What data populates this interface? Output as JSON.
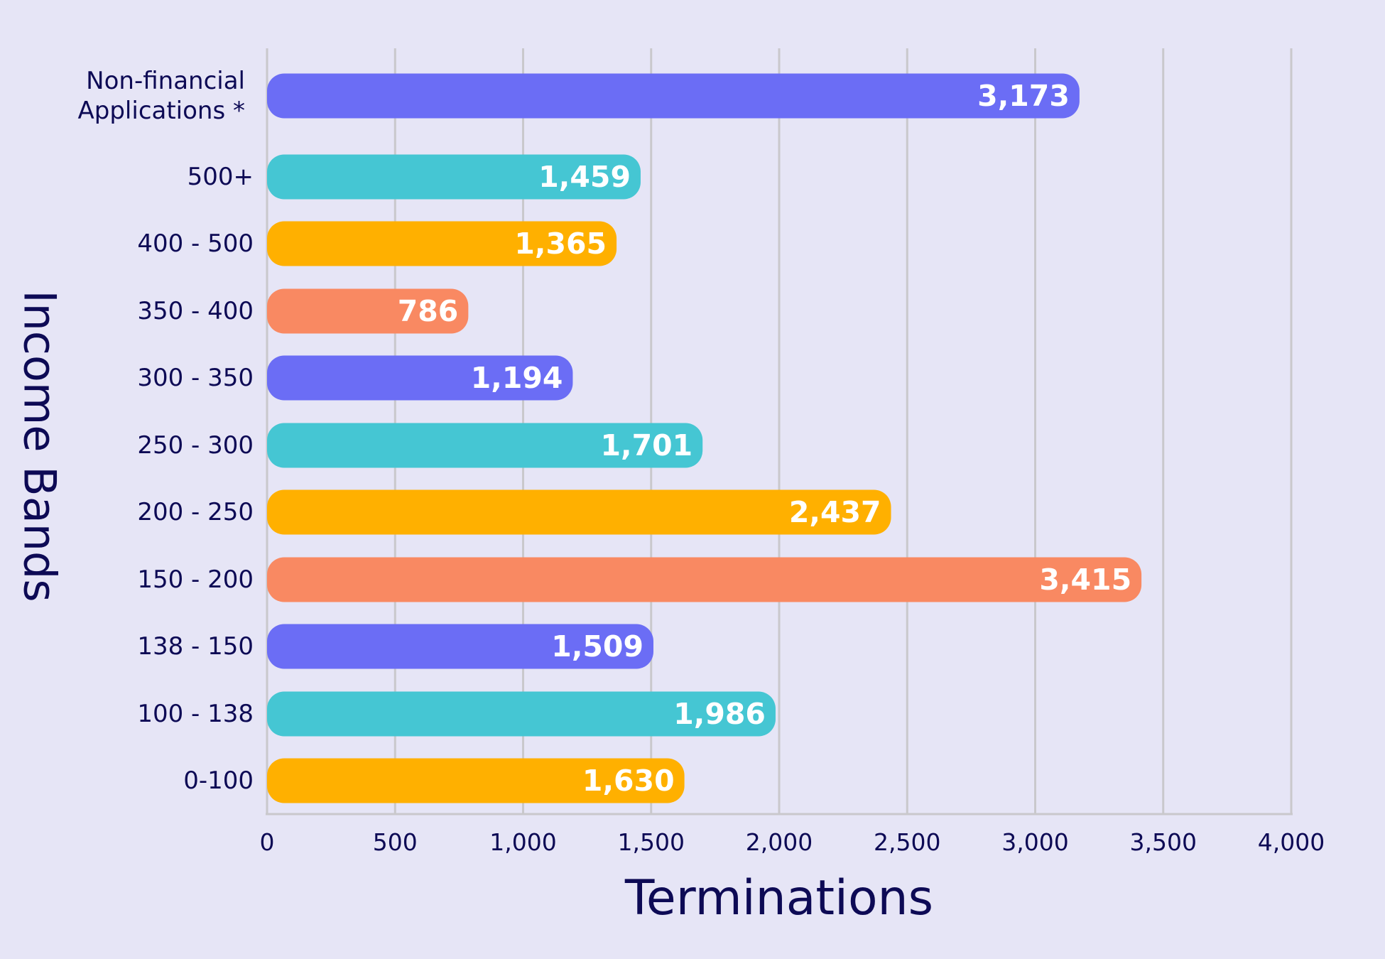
{
  "chart_data": {
    "type": "bar",
    "orientation": "horizontal",
    "categories": [
      "Non-financial\nApplications *",
      "500+",
      "400 - 500",
      "350 - 400",
      "300 - 350",
      "250 - 300",
      "200 - 250",
      "150 - 200",
      "138 - 150",
      "100 - 138",
      "0-100"
    ],
    "values": [
      3173,
      1459,
      1365,
      786,
      1194,
      1701,
      2437,
      3415,
      1509,
      1986,
      1630
    ],
    "value_labels": [
      "3,173",
      "1,459",
      "1,365",
      "786",
      "1,194",
      "1,701",
      "2,437",
      "3,415",
      "1,509",
      "1,986",
      "1,630"
    ],
    "colors": [
      "#6B6DF5",
      "#45C6D3",
      "#FFB000",
      "#F98962",
      "#6B6DF5",
      "#45C6D3",
      "#FFB000",
      "#F98962",
      "#6B6DF5",
      "#45C6D3",
      "#FFB000"
    ],
    "xlabel": "Terminations",
    "ylabel": "Income Bands",
    "xlim": [
      0,
      4000
    ],
    "xticks": [
      0,
      500,
      1000,
      1500,
      2000,
      2500,
      3000,
      3500,
      4000
    ],
    "xtick_labels": [
      "0",
      "500",
      "1,000",
      "1,500",
      "2,000",
      "2,500",
      "3,000",
      "3,500",
      "4,000"
    ],
    "grid": "vertical",
    "background": "#E6E5F6",
    "text_color": "#0D0A55"
  }
}
